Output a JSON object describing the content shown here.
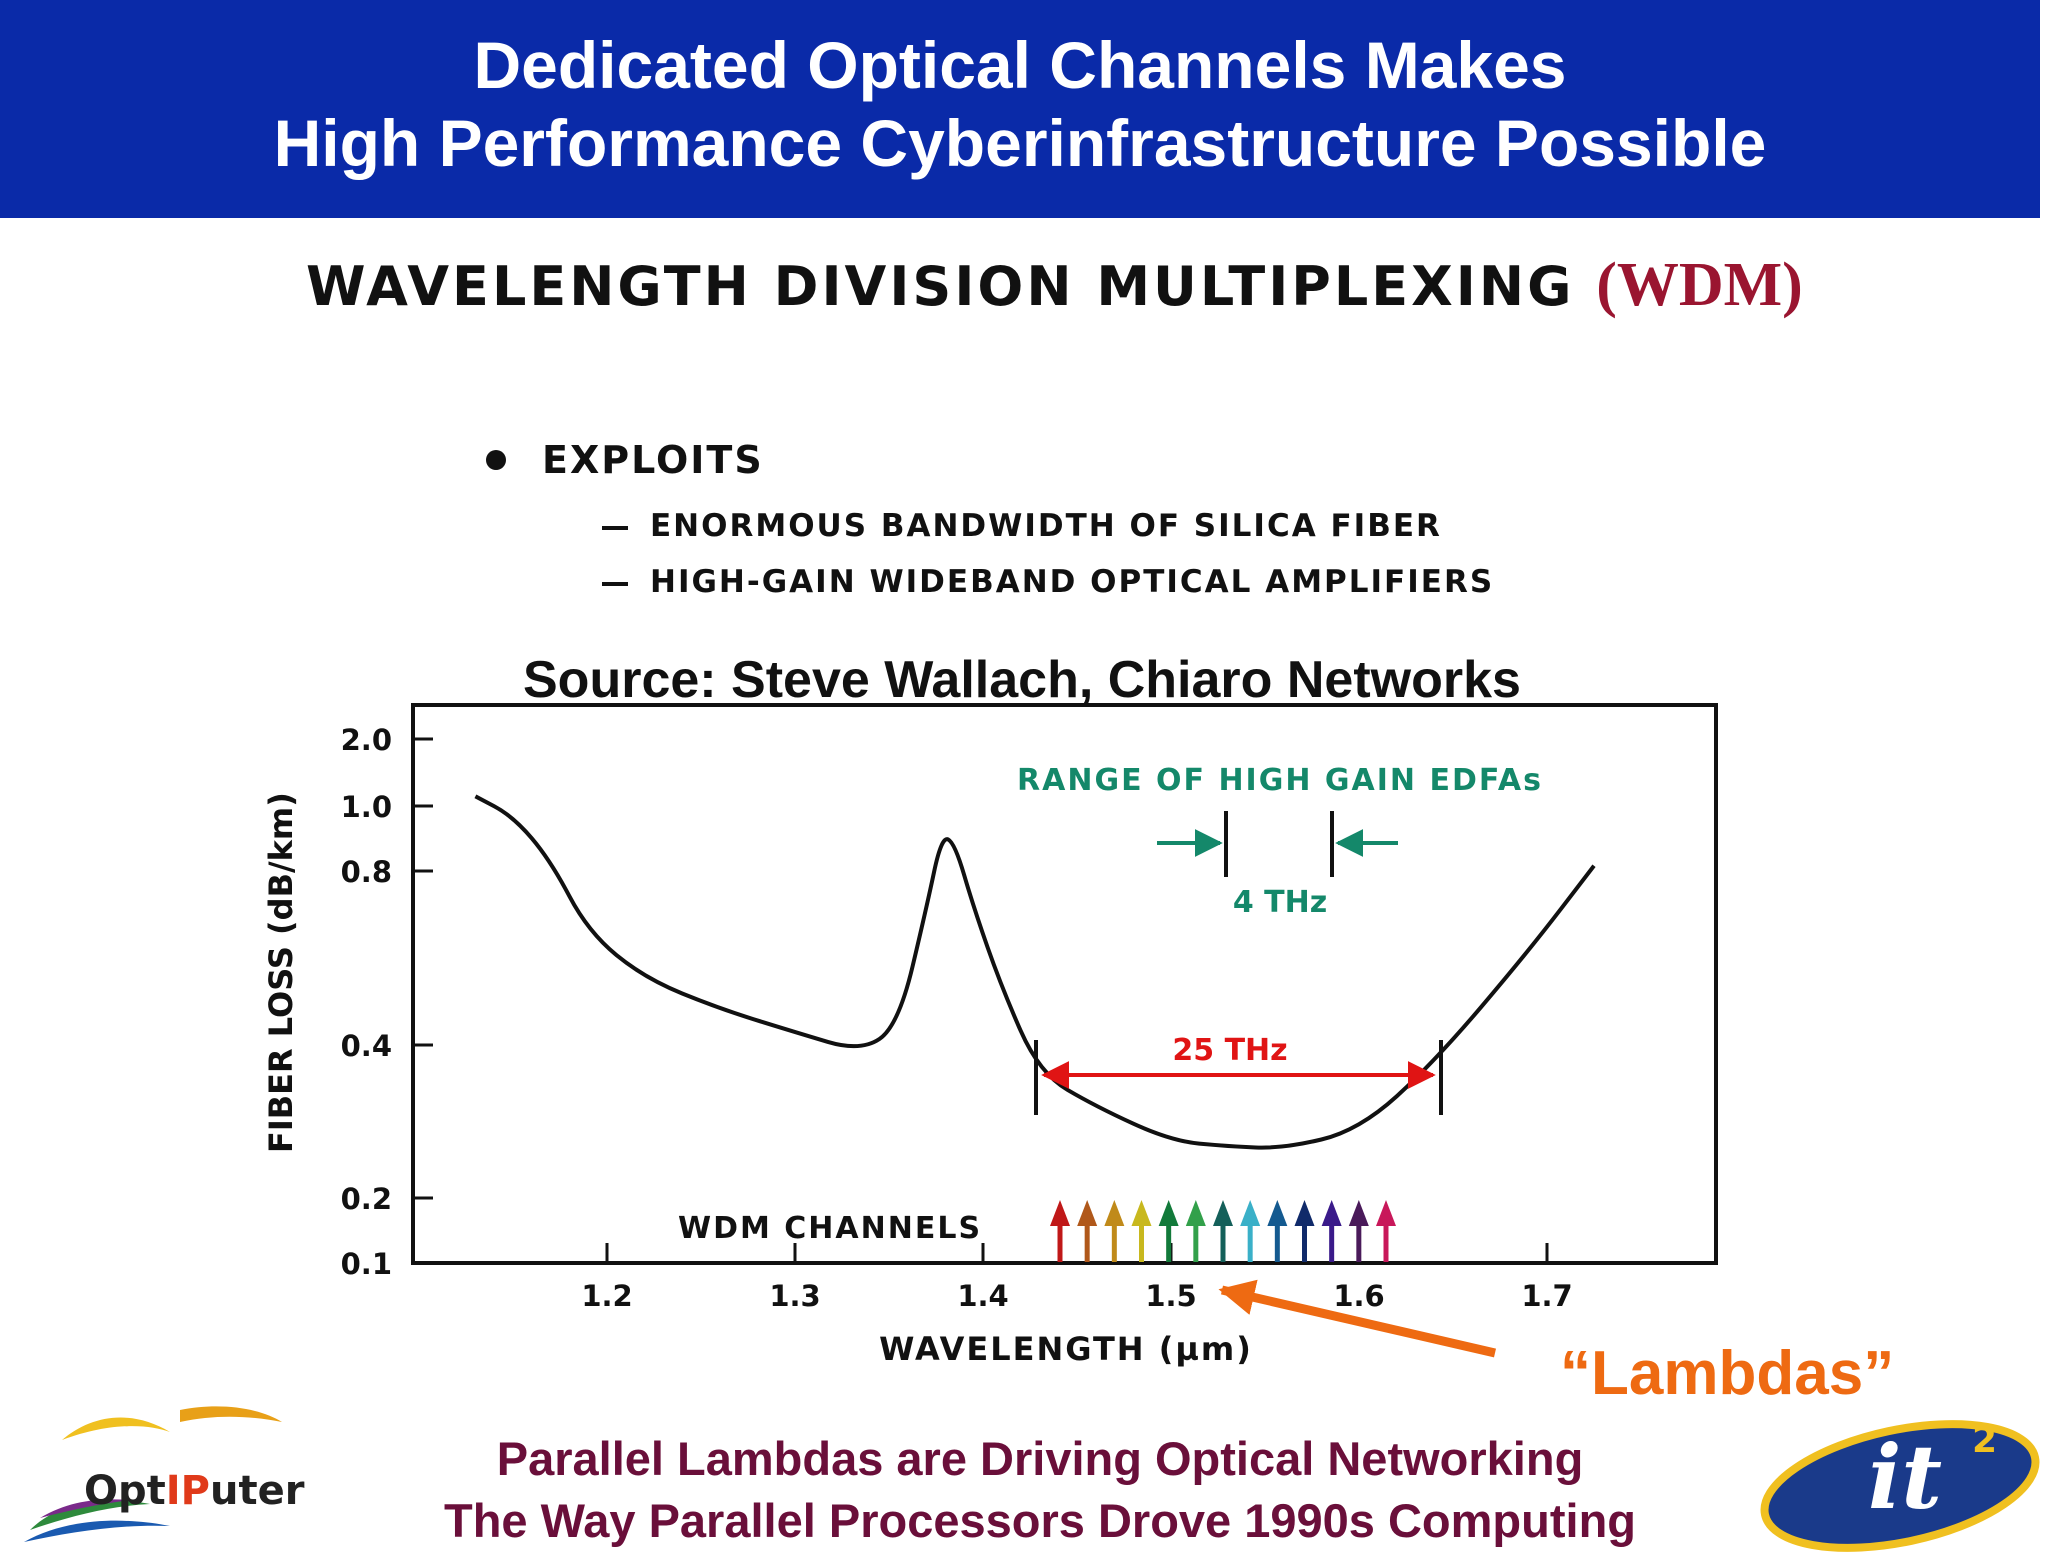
{
  "header": {
    "line1": "Dedicated Optical Channels Makes",
    "line2": "High Performance Cyberinfrastructure Possible",
    "background": "#0a2aa8"
  },
  "wdm_title": {
    "main": "WAVELENGTH DIVISION MULTIPLEXING",
    "abbr": "(WDM)",
    "abbr_color": "#9a1530"
  },
  "exploits": {
    "heading": "EXPLOITS",
    "items": [
      "ENORMOUS BANDWIDTH OF SILICA FIBER",
      "HIGH-GAIN WIDEBAND OPTICAL AMPLIFIERS"
    ]
  },
  "source": "Source: Steve Wallach, Chiaro Networks",
  "chart_data": {
    "type": "line",
    "title": "",
    "xlabel": "WAVELENGTH (µm)",
    "ylabel": "FIBER LOSS (dB/km)",
    "xlim": [
      1.1,
      1.79
    ],
    "y_ticks": [
      "2.0",
      "1.0",
      "0.8",
      "0.4",
      "0.2",
      "0.1"
    ],
    "x_ticks": [
      "1.2",
      "1.3",
      "1.4",
      "1.5",
      "1.6",
      "1.7"
    ],
    "series": [
      {
        "x": [
          1.13,
          1.15,
          1.17,
          1.19,
          1.22,
          1.26,
          1.3,
          1.335,
          1.355,
          1.37,
          1.378,
          1.385,
          1.395,
          1.41,
          1.43,
          1.46,
          1.5,
          1.53,
          1.56,
          1.6,
          1.64,
          1.69,
          1.725
        ],
        "y": [
          1.05,
          0.95,
          0.76,
          0.53,
          0.42,
          0.36,
          0.32,
          0.29,
          0.33,
          0.6,
          0.86,
          0.83,
          0.6,
          0.4,
          0.26,
          0.22,
          0.185,
          0.18,
          0.178,
          0.195,
          0.275,
          0.48,
          0.74
        ]
      }
    ],
    "annotations": {
      "edfa_label": "RANGE OF HIGH GAIN EDFAs",
      "edfa_width": "4 THz",
      "band_width": "25 THz",
      "channels_label": "WDM CHANNELS"
    },
    "channel_colors": [
      "#c01818",
      "#b0581a",
      "#c08a1a",
      "#c8b81e",
      "#127a3a",
      "#32a04a",
      "#14605a",
      "#3ab0c8",
      "#145a90",
      "#102a6a",
      "#3a1a8a",
      "#4a1a5a",
      "#c8185a"
    ],
    "colors": {
      "edfa": "#14886a",
      "band": "#e01414",
      "curve": "#111111"
    }
  },
  "lambdas_label": "“Lambdas”",
  "lambdas_color": "#ee6a12",
  "footer": {
    "line1": "Parallel Lambdas are Driving Optical Networking",
    "line2": "The Way Parallel Processors Drove 1990s Computing",
    "color": "#6a0f3a"
  },
  "logos": {
    "left": "OptIPuter",
    "right": "it",
    "right_sup": "2"
  }
}
